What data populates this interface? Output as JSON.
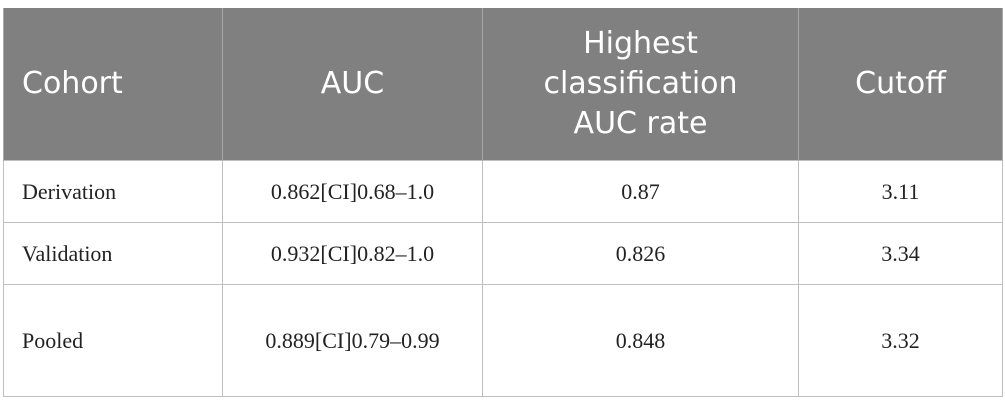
{
  "table": {
    "header": [
      "Cohort",
      "AUC",
      "Highest classification AUC rate",
      "Cutoff"
    ],
    "rows": [
      [
        "Derivation",
        "0.862[CI]0.68–1.0",
        "0.87",
        "3.11"
      ],
      [
        "Validation",
        "0.932[CI]0.82–1.0",
        "0.826",
        "3.34"
      ],
      [
        "Pooled",
        "0.889[CI]0.79–0.99",
        "0.848",
        "3.32"
      ]
    ]
  }
}
